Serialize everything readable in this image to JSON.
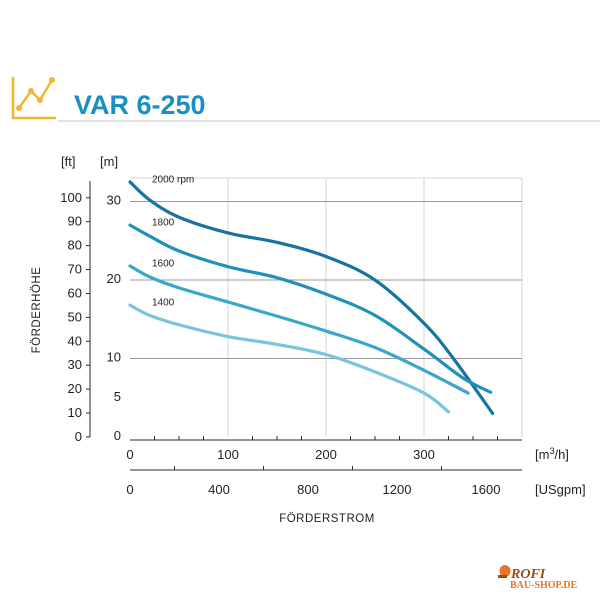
{
  "colors": {
    "title": "#1a8fc2",
    "icon": "#f2b531",
    "header_rule": "#cfcfcf",
    "axis": "#2b2b2b",
    "grid": "#9b9b9b",
    "curve_2000": "#1773a0",
    "curve_1800": "#2191ba",
    "curve_1600": "#3aa6cc",
    "curve_1400": "#7ac4e0",
    "watermark_orange": "#e8742a",
    "watermark_dark": "#9a4a12"
  },
  "header": {
    "icon": "line-chart-icon",
    "title": "VAR 6-250"
  },
  "chart_data": {
    "type": "line",
    "title": "VAR 6-250",
    "y_axis": {
      "label": "FÖRDERHÖHE",
      "unit_left": "[ft]",
      "unit_right": "[m]",
      "ticks_m": [
        "30",
        "20",
        "10",
        "5",
        "0"
      ],
      "ticks_m_values": [
        30,
        20,
        10,
        5,
        0
      ],
      "ticks_ft": [
        "100",
        "90",
        "80",
        "70",
        "60",
        "50",
        "40",
        "30",
        "20",
        "10",
        "0"
      ],
      "ticks_ft_values": [
        100,
        90,
        80,
        70,
        60,
        50,
        40,
        30,
        20,
        10,
        0
      ],
      "ylim_m": [
        0,
        33
      ]
    },
    "x_axis": {
      "label": "FÖRDERSTROM",
      "unit_top": "[m³/h]",
      "unit_top_base": "[m",
      "unit_top_sup": "3",
      "unit_top_tail": "/h]",
      "unit_bottom": "[USgpm]",
      "ticks_m3h": [
        "0",
        "100",
        "200",
        "300"
      ],
      "ticks_m3h_values": [
        0,
        100,
        200,
        300
      ],
      "ticks_usgpm": [
        "0",
        "400",
        "800",
        "1200",
        "1600"
      ],
      "ticks_usgpm_values": [
        0,
        400,
        800,
        1200,
        1600
      ],
      "xlim_m3h": [
        0,
        400
      ]
    },
    "grid": true,
    "gridlines_m": [
      10,
      20,
      30
    ],
    "series": [
      {
        "name": "2000 rpm",
        "color_key": "curve_2000",
        "points": [
          [
            0,
            32.5
          ],
          [
            20,
            30.2
          ],
          [
            50,
            28.0
          ],
          [
            100,
            26.0
          ],
          [
            150,
            24.8
          ],
          [
            200,
            23.0
          ],
          [
            250,
            20.0
          ],
          [
            300,
            14.5
          ],
          [
            330,
            10.0
          ],
          [
            370,
            3.0
          ]
        ]
      },
      {
        "name": "1800",
        "color_key": "curve_1800",
        "points": [
          [
            0,
            27.0
          ],
          [
            20,
            25.6
          ],
          [
            50,
            23.7
          ],
          [
            100,
            21.7
          ],
          [
            150,
            20.3
          ],
          [
            200,
            18.2
          ],
          [
            250,
            15.5
          ],
          [
            300,
            11.2
          ],
          [
            340,
            7.5
          ],
          [
            368,
            5.7
          ]
        ]
      },
      {
        "name": "1600",
        "color_key": "curve_1600",
        "points": [
          [
            0,
            21.8
          ],
          [
            20,
            20.4
          ],
          [
            50,
            19.0
          ],
          [
            100,
            17.2
          ],
          [
            150,
            15.4
          ],
          [
            200,
            13.5
          ],
          [
            250,
            11.4
          ],
          [
            300,
            8.5
          ],
          [
            345,
            5.6
          ]
        ]
      },
      {
        "name": "1400",
        "color_key": "curve_1400",
        "points": [
          [
            0,
            16.8
          ],
          [
            20,
            15.5
          ],
          [
            50,
            14.3
          ],
          [
            100,
            12.8
          ],
          [
            150,
            11.8
          ],
          [
            200,
            10.5
          ],
          [
            250,
            8.3
          ],
          [
            300,
            5.6
          ],
          [
            325,
            3.2
          ]
        ]
      }
    ]
  },
  "watermark": {
    "line1": "ROFI",
    "line2": "BAU-SHOP.DE"
  }
}
